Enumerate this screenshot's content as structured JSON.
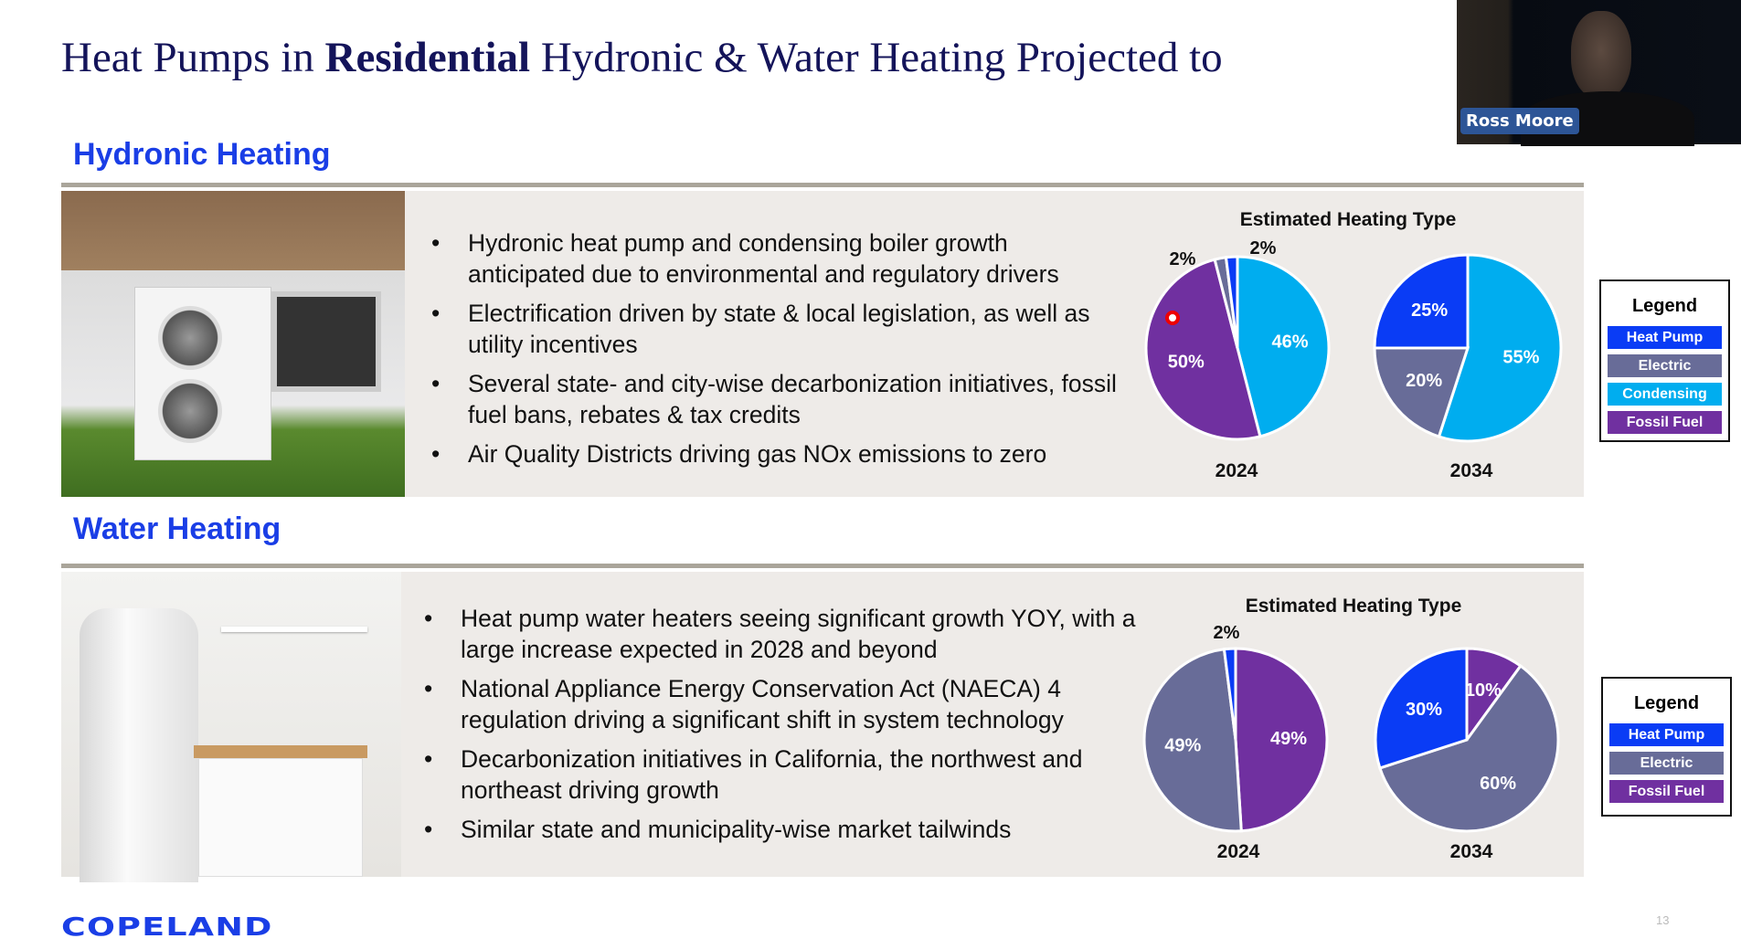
{
  "title": {
    "part1": "Heat Pumps in ",
    "bold": "Residential",
    "part2": " Hydronic & Water Heating Projected to"
  },
  "webcam": {
    "name": "Ross Moore"
  },
  "colors": {
    "heat_pump": "#0a3cf5",
    "electric": "#686c98",
    "condensing": "#00adef",
    "fossil_fuel": "#7030a0"
  },
  "hydronic": {
    "heading": "Hydronic Heating",
    "bullets": [
      "Hydronic heat pump and condensing boiler growth anticipated due to environmental and regulatory drivers",
      "Electrification driven by state & local legislation, as well as utility incentives",
      "Several state- and city-wise decarbonization initiatives, fossil fuel bans, rebates & tax credits",
      "Air Quality Districts driving gas NOx emissions to zero"
    ],
    "chart_title": "Estimated Heating Type",
    "legend": {
      "title": "Legend",
      "items": [
        "Heat Pump",
        "Electric",
        "Condensing",
        "Fossil Fuel"
      ]
    }
  },
  "water": {
    "heading": "Water Heating",
    "bullets": [
      "Heat pump water heaters seeing significant growth YOY, with a large increase expected in 2028 and beyond",
      "National Appliance Energy Conservation Act (NAECA) 4 regulation driving a significant shift in system technology",
      "Decarbonization initiatives in California, the northwest and northeast driving growth",
      "Similar state and municipality-wise market tailwinds"
    ],
    "chart_title": "Estimated Heating Type",
    "legend": {
      "title": "Legend",
      "items": [
        "Heat Pump",
        "Electric",
        "Fossil Fuel"
      ]
    }
  },
  "chart_data": [
    {
      "type": "pie",
      "title": "Estimated Heating Type",
      "label": "2024",
      "section": "Hydronic Heating",
      "slices": [
        {
          "name": "Condensing",
          "value": 46
        },
        {
          "name": "Fossil Fuel",
          "value": 50
        },
        {
          "name": "Electric",
          "value": 2
        },
        {
          "name": "Heat Pump",
          "value": 2
        }
      ]
    },
    {
      "type": "pie",
      "title": "Estimated Heating Type",
      "label": "2034",
      "section": "Hydronic Heating",
      "slices": [
        {
          "name": "Condensing",
          "value": 55
        },
        {
          "name": "Electric",
          "value": 20
        },
        {
          "name": "Heat Pump",
          "value": 25
        }
      ]
    },
    {
      "type": "pie",
      "title": "Estimated Heating Type",
      "label": "2024",
      "section": "Water Heating",
      "slices": [
        {
          "name": "Fossil Fuel",
          "value": 49
        },
        {
          "name": "Electric",
          "value": 49
        },
        {
          "name": "Heat Pump",
          "value": 2
        }
      ]
    },
    {
      "type": "pie",
      "title": "Estimated Heating Type",
      "label": "2034",
      "section": "Water Heating",
      "slices": [
        {
          "name": "Fossil Fuel",
          "value": 10
        },
        {
          "name": "Electric",
          "value": 60
        },
        {
          "name": "Heat Pump",
          "value": 30
        }
      ]
    }
  ],
  "footer": {
    "logo": "COPELAND",
    "page": "13"
  }
}
